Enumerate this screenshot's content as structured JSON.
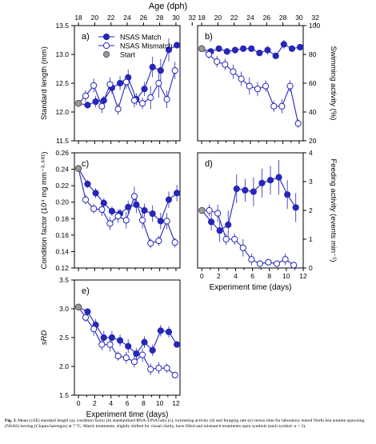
{
  "top_axis": {
    "label": "Age (dph)",
    "ticks": [
      "18",
      "20",
      "22",
      "24",
      "26",
      "28",
      "30",
      "32"
    ]
  },
  "legend": {
    "match": "NSAS Match",
    "mismatch": "NSAS Mismatch",
    "start": "Start"
  },
  "caption": {
    "lead": "Fig. 3.",
    "text": "Mean (±SE) standard length (a), condition factor (b) standardized RNA–DNA ratio (c), swimming activity (d) and foraging rate (e) versus time for laboratory reared North Sea autumn spawning (NSAS) herring (Clupea harengus) at 7 °C. Match treatments, slightly shifted for visual clarity, have filled and mismatch treatments open symbols (each symbol: n = 3)."
  },
  "colors": {
    "series": "#2626b8",
    "start": "#9a9a9a",
    "axis": "#000000"
  },
  "chart_data": [
    {
      "panel": "a)",
      "type": "line",
      "ylabel": "Standard length (mm)",
      "ylim": [
        11.5,
        13.5
      ],
      "yticks": [
        "11.5",
        "12.0",
        "12.5",
        "13.0",
        "13.5"
      ],
      "xlim": [
        -0.5,
        12.5
      ],
      "x_top": "Age (dph)",
      "start": {
        "x": 0,
        "y": 12.15
      },
      "series": [
        {
          "name": "NSAS Match",
          "x": [
            0,
            1,
            2,
            3,
            4,
            5,
            6,
            7,
            8,
            9,
            10,
            11,
            12
          ],
          "y": [
            12.15,
            12.12,
            12.18,
            12.2,
            12.42,
            12.5,
            12.6,
            12.22,
            12.4,
            12.78,
            12.72,
            13.08,
            13.16
          ],
          "err": [
            0.05,
            0.06,
            0.1,
            0.08,
            0.1,
            0.12,
            0.14,
            0.1,
            0.12,
            0.18,
            0.2,
            0.2,
            0.05
          ]
        },
        {
          "name": "NSAS Mismatch",
          "x": [
            0,
            1,
            2,
            3,
            4,
            5,
            6,
            7,
            8,
            9,
            10,
            11,
            12
          ],
          "y": [
            12.15,
            12.28,
            12.46,
            12.1,
            12.48,
            12.05,
            12.52,
            12.2,
            12.15,
            12.25,
            12.5,
            12.22,
            12.72
          ],
          "err": [
            0.05,
            0.1,
            0.12,
            0.12,
            0.12,
            0.1,
            0.12,
            0.12,
            0.1,
            0.2,
            0.25,
            0.15,
            0.15
          ]
        }
      ]
    },
    {
      "panel": "b)",
      "type": "line",
      "ylabel": "Swimming activity (%)",
      "ylim": [
        20,
        100
      ],
      "yticks": [
        "20",
        "40",
        "60",
        "80",
        "100"
      ],
      "xlim": [
        -0.5,
        12.5
      ],
      "start": {
        "x": 0,
        "y": 84
      },
      "series": [
        {
          "name": "NSAS Match",
          "x": [
            0,
            1,
            2,
            3,
            4,
            5,
            6,
            7,
            8,
            9,
            10,
            11,
            12
          ],
          "y": [
            84,
            82,
            84,
            82,
            83,
            84,
            84,
            81,
            83,
            79,
            87,
            84,
            85
          ],
          "err": [
            1,
            2,
            2,
            2,
            2,
            2,
            2,
            2,
            3,
            2,
            3,
            2,
            2
          ]
        },
        {
          "name": "NSAS Mismatch",
          "x": [
            0,
            1,
            2,
            3,
            4,
            5,
            6,
            7,
            8,
            9,
            10,
            11,
            12
          ],
          "y": [
            84,
            80,
            75,
            73,
            68,
            63,
            58,
            56,
            58,
            44,
            44,
            58,
            32
          ],
          "err": [
            1,
            3,
            4,
            4,
            5,
            5,
            6,
            5,
            4,
            4,
            5,
            4,
            3
          ]
        }
      ]
    },
    {
      "panel": "c)",
      "type": "line",
      "ylabel": "Condition factor (10⁴ mg mm⁻³·⁶⁸¹)",
      "ylim": [
        0.12,
        0.26
      ],
      "yticks": [
        "0.12",
        "0.14",
        "0.16",
        "0.18",
        "0.20",
        "0.22",
        "0.24",
        "0.26"
      ],
      "xlim": [
        -0.5,
        12.5
      ],
      "start": {
        "x": 0,
        "y": 0.241
      },
      "series": [
        {
          "name": "NSAS Match",
          "x": [
            0,
            1,
            2,
            3,
            4,
            5,
            6,
            7,
            8,
            9,
            10,
            11,
            12
          ],
          "y": [
            0.241,
            0.222,
            0.211,
            0.199,
            0.189,
            0.186,
            0.194,
            0.197,
            0.19,
            0.186,
            0.177,
            0.203,
            0.211
          ],
          "err": [
            0.002,
            0.005,
            0.006,
            0.006,
            0.006,
            0.006,
            0.008,
            0.01,
            0.008,
            0.01,
            0.01,
            0.01,
            0.01
          ]
        },
        {
          "name": "NSAS Mismatch",
          "x": [
            0,
            1,
            2,
            3,
            4,
            5,
            6,
            7,
            8,
            9,
            10,
            11,
            12
          ],
          "y": [
            0.241,
            0.203,
            0.192,
            0.191,
            0.174,
            0.183,
            0.178,
            0.207,
            0.178,
            0.15,
            0.153,
            0.177,
            0.151
          ],
          "err": [
            0.002,
            0.006,
            0.006,
            0.008,
            0.008,
            0.008,
            0.01,
            0.012,
            0.01,
            0.006,
            0.006,
            0.01,
            0.006
          ]
        }
      ]
    },
    {
      "panel": "d)",
      "type": "line",
      "ylabel": "Feeding activity (events min⁻¹)",
      "ylim": [
        0,
        4
      ],
      "yticks": [
        "0",
        "1",
        "2",
        "3",
        "4"
      ],
      "xlim": [
        -0.5,
        12
      ],
      "xlabel": "Experiment time (days)",
      "xticks": [
        "0",
        "2",
        "4",
        "6",
        "8",
        "10",
        "12"
      ],
      "start": {
        "x": 0,
        "y": 2.0
      },
      "series": [
        {
          "name": "NSAS Match",
          "x": [
            0,
            1,
            2,
            3,
            4,
            5,
            6,
            7,
            8,
            9,
            10,
            11
          ],
          "y": [
            2.0,
            1.6,
            1.3,
            1.5,
            2.75,
            2.7,
            2.65,
            2.95,
            3.05,
            3.15,
            2.55,
            2.1
          ],
          "err": [
            0.05,
            0.3,
            0.4,
            0.5,
            0.5,
            0.4,
            0.5,
            0.5,
            0.5,
            0.6,
            0.5,
            0.5
          ]
        },
        {
          "name": "NSAS Mismatch",
          "x": [
            0,
            1,
            2,
            3,
            4,
            5,
            6,
            7,
            8,
            9,
            10,
            11
          ],
          "y": [
            2.0,
            2.0,
            1.9,
            1.0,
            1.0,
            0.7,
            0.3,
            0.15,
            0.2,
            0.15,
            0.3,
            0.1
          ],
          "err": [
            0.05,
            0.2,
            0.3,
            0.2,
            0.2,
            0.3,
            0.2,
            0.1,
            0.1,
            0.1,
            0.2,
            0.05
          ]
        }
      ]
    },
    {
      "panel": "e)",
      "type": "line",
      "ylabel": "sRD",
      "ylim": [
        1.5,
        3.5
      ],
      "yticks": [
        "1.5",
        "2.0",
        "2.5",
        "3.0",
        "3.5"
      ],
      "xlim": [
        -0.5,
        12.5
      ],
      "xlabel": "Experiment time (days)",
      "xticks": [
        "0",
        "2",
        "4",
        "6",
        "8",
        "10",
        "12"
      ],
      "start": {
        "x": 0,
        "y": 3.03
      },
      "series": [
        {
          "name": "NSAS Match",
          "x": [
            0,
            1,
            2,
            3,
            4,
            5,
            6,
            7,
            8,
            9,
            10,
            11,
            12
          ],
          "y": [
            3.03,
            2.95,
            2.72,
            2.5,
            2.5,
            2.45,
            2.35,
            2.22,
            2.42,
            2.28,
            2.62,
            2.6,
            2.38
          ],
          "err": [
            0.03,
            0.05,
            0.1,
            0.12,
            0.12,
            0.1,
            0.12,
            0.1,
            0.1,
            0.1,
            0.1,
            0.1,
            0.05
          ]
        },
        {
          "name": "NSAS Mismatch",
          "x": [
            0,
            1,
            2,
            3,
            4,
            5,
            6,
            7,
            8,
            9,
            10,
            11,
            12
          ],
          "y": [
            3.03,
            2.85,
            2.65,
            2.38,
            2.38,
            2.18,
            2.15,
            2.08,
            2.2,
            1.95,
            1.97,
            1.97,
            1.85
          ],
          "err": [
            0.03,
            0.08,
            0.12,
            0.1,
            0.12,
            0.08,
            0.1,
            0.1,
            0.12,
            0.1,
            0.1,
            0.08,
            0.05
          ]
        }
      ]
    }
  ]
}
